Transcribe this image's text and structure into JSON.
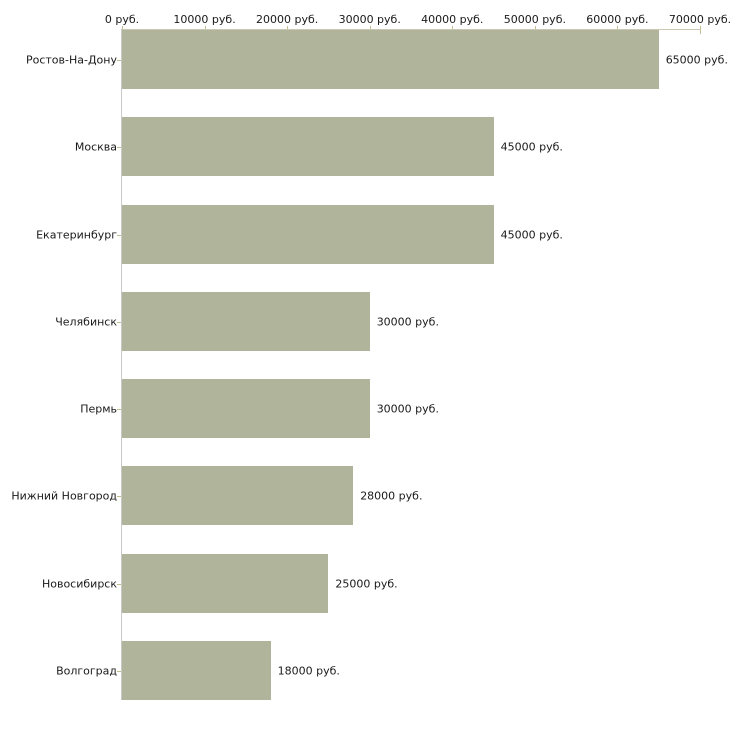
{
  "chart_data": {
    "type": "bar",
    "orientation": "horizontal",
    "categories": [
      "Ростов-На-Дону",
      "Москва",
      "Екатеринбург",
      "Челябинск",
      "Пермь",
      "Нижний Новгород",
      "Новосибирск",
      "Волгоград"
    ],
    "values": [
      65000,
      45000,
      45000,
      30000,
      30000,
      28000,
      25000,
      18000
    ],
    "value_labels": [
      "65000 руб.",
      "45000 руб.",
      "45000 руб.",
      "30000 руб.",
      "30000 руб.",
      "28000 руб.",
      "25000 руб.",
      "18000 руб."
    ],
    "x_ticks": [
      0,
      10000,
      20000,
      30000,
      40000,
      50000,
      60000,
      70000
    ],
    "x_tick_labels": [
      "0 руб.",
      "10000 руб.",
      "20000 руб.",
      "30000 руб.",
      "40000 руб.",
      "50000 руб.",
      "60000 руб.",
      "70000 руб."
    ],
    "xlim": [
      0,
      70000
    ],
    "grid": false,
    "legend": false,
    "axis_position": "top",
    "colors": {
      "bar": "#afb49b",
      "vertical_axis_line": "#c9c9c9",
      "horizontal_axis_line": "#ccc9b0",
      "tick_mark": "#c1bc92",
      "text": "#1a1a1a",
      "background": "#ffffff"
    }
  }
}
